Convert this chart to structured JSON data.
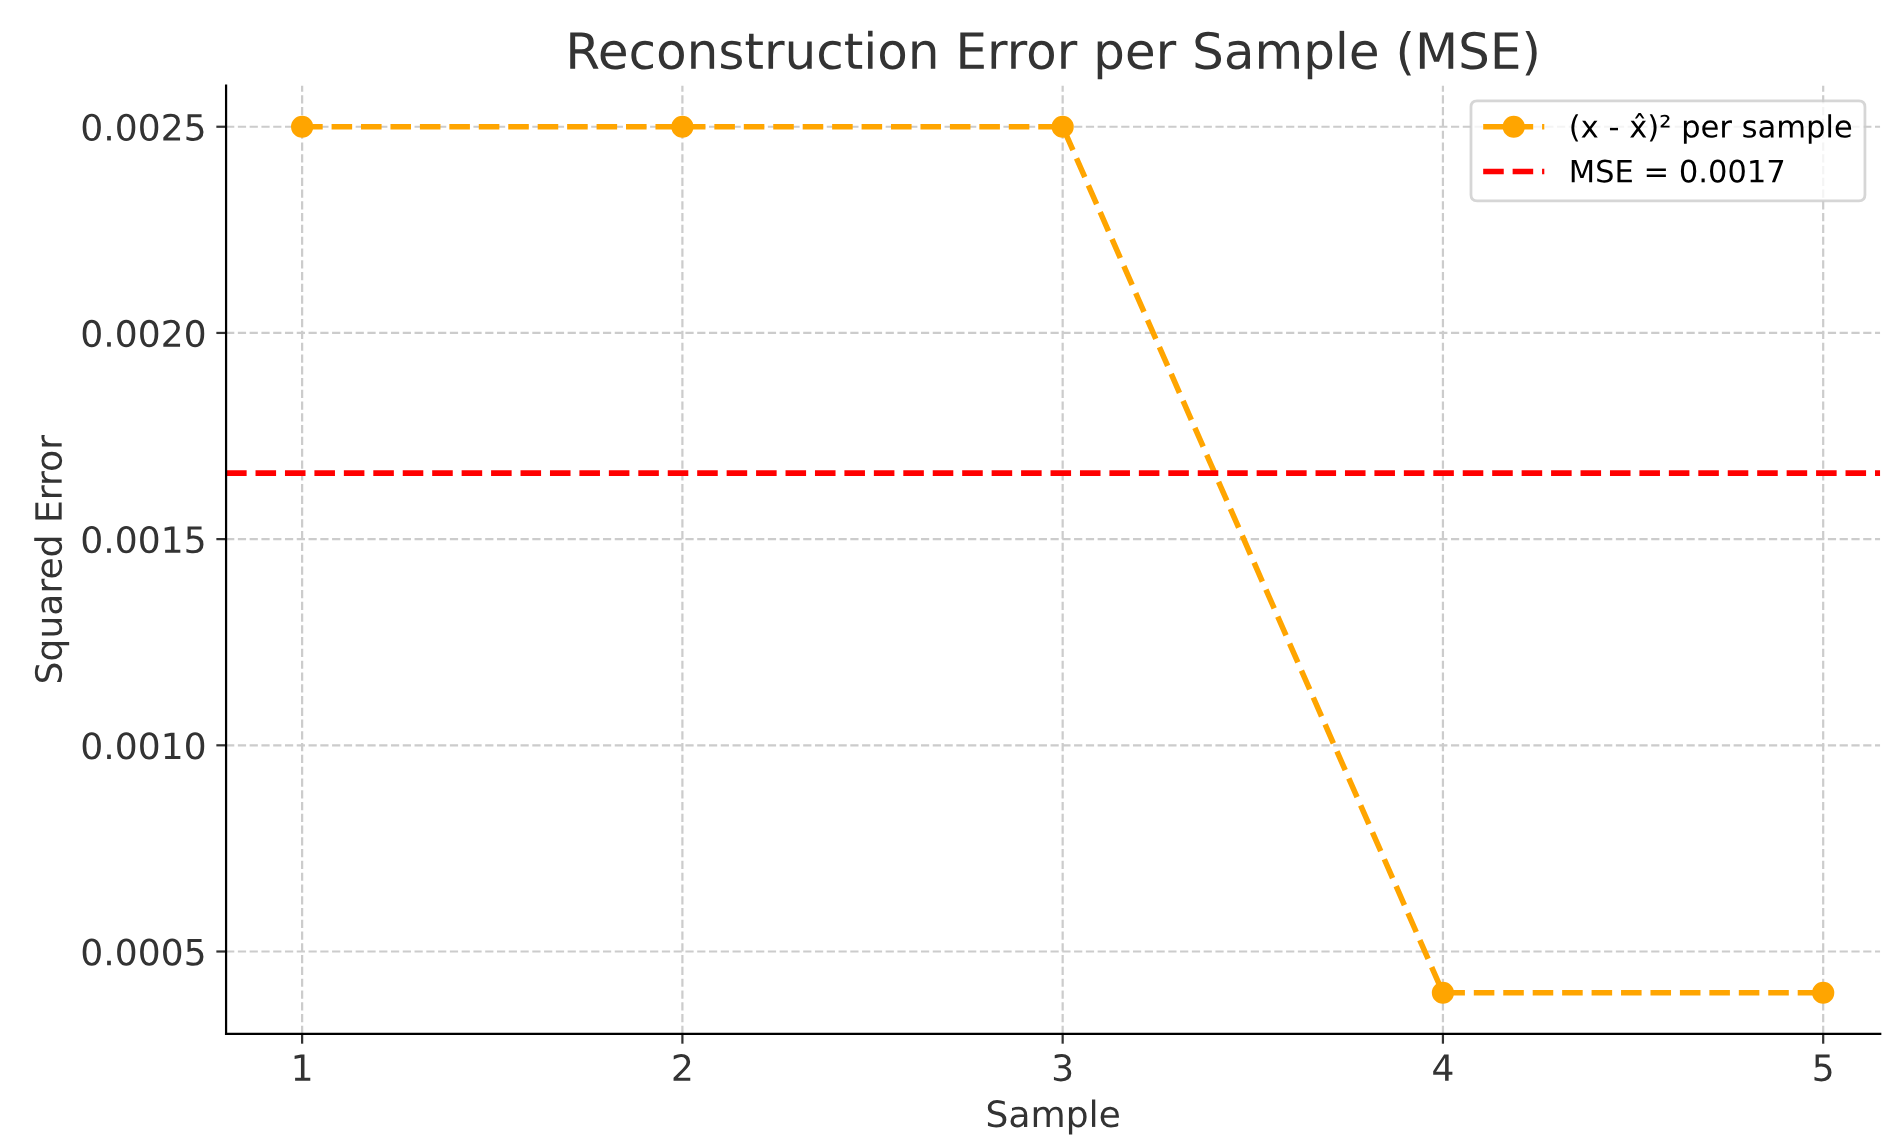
{
  "chart_data": {
    "type": "line",
    "title": "Reconstruction Error per Sample (MSE)",
    "xlabel": "Sample",
    "ylabel": "Squared Error",
    "x": [
      1,
      2,
      3,
      4,
      5
    ],
    "series": [
      {
        "name": "(x - x̂)² per sample",
        "color": "#ffa500",
        "values": [
          0.0025,
          0.0025,
          0.0025,
          0.0004,
          0.0004
        ]
      }
    ],
    "ref_lines": [
      {
        "axis": "y",
        "value": 0.00166,
        "label": "MSE = 0.0017",
        "color": "#ff0000",
        "line_style": "dashed"
      }
    ],
    "xlim": [
      0.8,
      5.15
    ],
    "ylim": [
      0.0003,
      0.0026
    ],
    "xticks": [
      1,
      2,
      3,
      4,
      5
    ],
    "yticks": [
      {
        "value": 0.0005,
        "label": "0.0005"
      },
      {
        "value": 0.001,
        "label": "0.0010"
      },
      {
        "value": 0.0015,
        "label": "0.0015"
      },
      {
        "value": 0.002,
        "label": "0.0020"
      },
      {
        "value": 0.0025,
        "label": "0.0025"
      }
    ],
    "grid": true,
    "legend": "top right",
    "marker": "circle",
    "line_style": "dashed"
  }
}
